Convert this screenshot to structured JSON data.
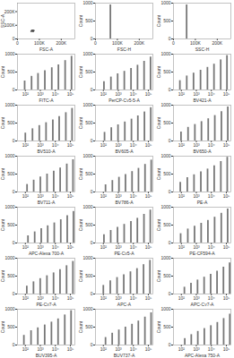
{
  "chart_data": [
    {
      "type": "scatter",
      "xlabel": "FSC-A",
      "ylabel": "SSC-A",
      "color": "#555555",
      "x": [
        62000,
        65000,
        68000,
        70000,
        72000,
        74000,
        66000,
        69000,
        71000,
        73000,
        67000,
        70500,
        64000,
        75000,
        69500,
        72500,
        68500,
        71500,
        66500,
        73500
      ],
      "y": [
        55000,
        60000,
        58000,
        62000,
        59000,
        61000,
        57000,
        63000,
        60500,
        58500,
        61500,
        56500,
        59500,
        62500,
        60000,
        57500,
        64000,
        55500,
        63500,
        59000
      ],
      "xlim": [
        0,
        262144
      ],
      "xticks": [
        {
          "value": 0,
          "label": "0"
        },
        {
          "value": 100000,
          "label": "100K"
        },
        {
          "value": 200000,
          "label": "200K"
        }
      ],
      "ylim": [
        0,
        262144
      ],
      "yticks": [
        {
          "value": 0,
          "label": "0"
        },
        {
          "value": 100000,
          "label": "100K"
        },
        {
          "value": 200000,
          "label": "200K"
        }
      ]
    },
    {
      "type": "spike",
      "xlabel": "FSC-H",
      "ylabel": "Count",
      "color": "#777777",
      "x": [
        68000
      ],
      "values": [
        950
      ],
      "xlim": [
        0,
        262144
      ],
      "xticks": [
        {
          "value": 0,
          "label": "0"
        },
        {
          "value": 100000,
          "label": "100K"
        },
        {
          "value": 200000,
          "label": "200K"
        }
      ],
      "ylim": [
        0,
        1000
      ],
      "yticks": [
        0,
        500,
        1000
      ]
    },
    {
      "type": "spike",
      "xlabel": "SSC-H",
      "ylabel": "Count",
      "color": "#777777",
      "x": [
        60000
      ],
      "values": [
        950
      ],
      "xlim": [
        0,
        262144
      ],
      "xticks": [
        {
          "value": 0,
          "label": "0"
        },
        {
          "value": 100000,
          "label": "100K"
        },
        {
          "value": 200000,
          "label": "200K"
        }
      ],
      "ylim": [
        0,
        1000
      ],
      "yticks": [
        0,
        500,
        1000
      ]
    },
    {
      "type": "spike",
      "log": "x",
      "xlabel": "FITC-A",
      "ylabel": "Count",
      "color": "#777777",
      "x": [
        90,
        260,
        700,
        2000,
        5800,
        16000,
        45000,
        120000
      ],
      "values": [
        250,
        380,
        460,
        540,
        620,
        700,
        820,
        940
      ],
      "xlim": [
        30,
        200000
      ],
      "xticks": [
        {
          "value": 100,
          "label": "10²"
        },
        {
          "value": 1000,
          "label": "10³"
        },
        {
          "value": 10000,
          "label": "10⁴"
        },
        {
          "value": 100000,
          "label": "10⁵"
        }
      ],
      "ylim": [
        0,
        1000
      ],
      "yticks": [
        0,
        500,
        1000
      ]
    },
    {
      "type": "spike",
      "log": "x",
      "xlabel": "PerCP-Cy5-5-A",
      "ylabel": "Count",
      "color": "#777777",
      "x": [
        110,
        320,
        900,
        2500,
        7000,
        19000,
        52000,
        140000
      ],
      "values": [
        230,
        360,
        450,
        520,
        600,
        690,
        800,
        920
      ],
      "xlim": [
        30,
        200000
      ],
      "xticks": [
        {
          "value": 100,
          "label": "10²"
        },
        {
          "value": 1000,
          "label": "10³"
        },
        {
          "value": 10000,
          "label": "10⁴"
        },
        {
          "value": 100000,
          "label": "10⁵"
        }
      ],
      "ylim": [
        0,
        1000
      ],
      "yticks": [
        0,
        500,
        1000
      ]
    },
    {
      "type": "spike",
      "log": "x",
      "xlabel": "BV421-A",
      "ylabel": "Count",
      "color": "#777777",
      "x": [
        80,
        230,
        650,
        1900,
        5500,
        15000,
        42000,
        110000
      ],
      "values": [
        260,
        390,
        470,
        550,
        630,
        720,
        840,
        960
      ],
      "xlim": [
        30,
        200000
      ],
      "xticks": [
        {
          "value": 100,
          "label": "10²"
        },
        {
          "value": 1000,
          "label": "10³"
        },
        {
          "value": 10000,
          "label": "10⁴"
        },
        {
          "value": 100000,
          "label": "10⁵"
        }
      ],
      "ylim": [
        0,
        1000
      ],
      "yticks": [
        0,
        500,
        1000
      ]
    },
    {
      "type": "spike",
      "log": "x",
      "xlabel": "BV510-A",
      "ylabel": "Count",
      "color": "#777777",
      "x": [
        100,
        300,
        850,
        2400,
        6800,
        18000,
        50000,
        130000
      ],
      "values": [
        220,
        340,
        430,
        510,
        590,
        680,
        790,
        910
      ],
      "xlim": [
        30,
        200000
      ],
      "xticks": [
        {
          "value": 100,
          "label": "10²"
        },
        {
          "value": 1000,
          "label": "10³"
        },
        {
          "value": 10000,
          "label": "10⁴"
        },
        {
          "value": 100000,
          "label": "10⁵"
        }
      ],
      "ylim": [
        0,
        1000
      ],
      "yticks": [
        0,
        500,
        1000
      ]
    },
    {
      "type": "spike",
      "log": "x",
      "xlabel": "BV605-A",
      "ylabel": "Count",
      "color": "#777777",
      "x": [
        120,
        340,
        950,
        2700,
        7500,
        20000,
        55000,
        145000
      ],
      "values": [
        240,
        370,
        450,
        530,
        610,
        700,
        810,
        930
      ],
      "xlim": [
        30,
        200000
      ],
      "xticks": [
        {
          "value": 100,
          "label": "10²"
        },
        {
          "value": 1000,
          "label": "10³"
        },
        {
          "value": 10000,
          "label": "10⁴"
        },
        {
          "value": 100000,
          "label": "10⁵"
        }
      ],
      "ylim": [
        0,
        1000
      ],
      "yticks": [
        0,
        500,
        1000
      ]
    },
    {
      "type": "spike",
      "log": "x",
      "xlabel": "BV650-A",
      "ylabel": "Count",
      "color": "#777777",
      "x": [
        95,
        280,
        800,
        2200,
        6200,
        17000,
        47000,
        125000
      ],
      "values": [
        250,
        380,
        460,
        540,
        620,
        710,
        820,
        950
      ],
      "xlim": [
        30,
        200000
      ],
      "xticks": [
        {
          "value": 100,
          "label": "10²"
        },
        {
          "value": 1000,
          "label": "10³"
        },
        {
          "value": 10000,
          "label": "10⁴"
        },
        {
          "value": 100000,
          "label": "10⁵"
        }
      ],
      "ylim": [
        0,
        1000
      ],
      "yticks": [
        0,
        500,
        1000
      ]
    },
    {
      "type": "spike",
      "log": "x",
      "xlabel": "BV711-A",
      "ylabel": "Count",
      "color": "#777777",
      "x": [
        130,
        360,
        1000,
        2800,
        7800,
        21000,
        58000,
        150000
      ],
      "values": [
        210,
        330,
        420,
        500,
        580,
        670,
        780,
        900
      ],
      "xlim": [
        30,
        200000
      ],
      "xticks": [
        {
          "value": 100,
          "label": "10²"
        },
        {
          "value": 1000,
          "label": "10³"
        },
        {
          "value": 10000,
          "label": "10⁴"
        },
        {
          "value": 100000,
          "label": "10⁵"
        }
      ],
      "ylim": [
        0,
        1000
      ],
      "yticks": [
        0,
        500,
        1000
      ]
    },
    {
      "type": "spike",
      "log": "x",
      "xlabel": "BV786-A",
      "ylabel": "Count",
      "color": "#777777",
      "x": [
        140,
        400,
        1100,
        3000,
        8200,
        22000,
        60000,
        155000
      ],
      "values": [
        200,
        320,
        410,
        490,
        570,
        660,
        770,
        890
      ],
      "xlim": [
        30,
        200000
      ],
      "xticks": [
        {
          "value": 100,
          "label": "10²"
        },
        {
          "value": 1000,
          "label": "10³"
        },
        {
          "value": 10000,
          "label": "10⁴"
        },
        {
          "value": 100000,
          "label": "10⁵"
        }
      ],
      "ylim": [
        0,
        1000
      ],
      "yticks": [
        0,
        500,
        1000
      ]
    },
    {
      "type": "spike",
      "log": "x",
      "xlabel": "PE-A",
      "ylabel": "Count",
      "color": "#777777",
      "x": [
        85,
        250,
        700,
        2000,
        5600,
        15500,
        43000,
        115000
      ],
      "values": [
        270,
        400,
        480,
        560,
        640,
        730,
        850,
        970
      ],
      "xlim": [
        30,
        200000
      ],
      "xticks": [
        {
          "value": 100,
          "label": "10²"
        },
        {
          "value": 1000,
          "label": "10³"
        },
        {
          "value": 10000,
          "label": "10⁴"
        },
        {
          "value": 100000,
          "label": "10⁵"
        }
      ],
      "ylim": [
        0,
        1000
      ],
      "yticks": [
        0,
        500,
        1000
      ]
    },
    {
      "type": "spike",
      "log": "x",
      "xlabel": "APC-Alexa 700-A",
      "ylabel": "Count",
      "color": "#777777",
      "x": [
        150,
        420,
        1150,
        3100,
        8500,
        23000,
        62000,
        160000
      ],
      "values": [
        200,
        310,
        400,
        480,
        560,
        650,
        760,
        880
      ],
      "xlim": [
        30,
        200000
      ],
      "xticks": [
        {
          "value": 100,
          "label": "10²"
        },
        {
          "value": 1000,
          "label": "10³"
        },
        {
          "value": 10000,
          "label": "10⁴"
        },
        {
          "value": 100000,
          "label": "10⁵"
        }
      ],
      "ylim": [
        0,
        1000
      ],
      "yticks": [
        0,
        500,
        1000
      ]
    },
    {
      "type": "spike",
      "log": "x",
      "xlabel": "PE-Cy5-A",
      "ylabel": "Count",
      "color": "#777777",
      "x": [
        110,
        310,
        880,
        2450,
        6900,
        18500,
        51000,
        135000
      ],
      "values": [
        230,
        350,
        440,
        520,
        600,
        690,
        800,
        920
      ],
      "xlim": [
        30,
        200000
      ],
      "xticks": [
        {
          "value": 100,
          "label": "10²"
        },
        {
          "value": 1000,
          "label": "10³"
        },
        {
          "value": 10000,
          "label": "10⁴"
        },
        {
          "value": 100000,
          "label": "10⁵"
        }
      ],
      "ylim": [
        0,
        1000
      ],
      "yticks": [
        0,
        500,
        1000
      ]
    },
    {
      "type": "spike",
      "log": "x",
      "xlabel": "PE-CF594-A",
      "ylabel": "Count",
      "color": "#777777",
      "x": [
        90,
        270,
        760,
        2100,
        5900,
        16500,
        46000,
        122000
      ],
      "values": [
        260,
        390,
        470,
        550,
        630,
        720,
        830,
        950
      ],
      "xlim": [
        30,
        200000
      ],
      "xticks": [
        {
          "value": 100,
          "label": "10²"
        },
        {
          "value": 1000,
          "label": "10³"
        },
        {
          "value": 10000,
          "label": "10⁴"
        },
        {
          "value": 100000,
          "label": "10⁵"
        }
      ],
      "ylim": [
        0,
        1000
      ],
      "yticks": [
        0,
        500,
        1000
      ]
    },
    {
      "type": "spike",
      "log": "x",
      "xlabel": "PE-Cy7-A",
      "ylabel": "Count",
      "color": "#777777",
      "x": [
        125,
        350,
        980,
        2750,
        7600,
        20500,
        56000,
        148000
      ],
      "values": [
        220,
        340,
        430,
        510,
        590,
        680,
        790,
        910
      ],
      "xlim": [
        30,
        200000
      ],
      "xticks": [
        {
          "value": 100,
          "label": "10²"
        },
        {
          "value": 1000,
          "label": "10³"
        },
        {
          "value": 10000,
          "label": "10⁴"
        },
        {
          "value": 100000,
          "label": "10⁵"
        }
      ],
      "ylim": [
        0,
        1000
      ],
      "yticks": [
        0,
        500,
        1000
      ]
    },
    {
      "type": "spike",
      "log": "x",
      "xlabel": "APC-A",
      "ylabel": "Count",
      "color": "#777777",
      "x": [
        100,
        290,
        820,
        2300,
        6400,
        17500,
        48000,
        128000
      ],
      "values": [
        240,
        370,
        460,
        540,
        620,
        710,
        820,
        940
      ],
      "xlim": [
        30,
        200000
      ],
      "xticks": [
        {
          "value": 100,
          "label": "10²"
        },
        {
          "value": 1000,
          "label": "10³"
        },
        {
          "value": 10000,
          "label": "10⁴"
        },
        {
          "value": 100000,
          "label": "10⁵"
        }
      ],
      "ylim": [
        0,
        1000
      ],
      "yticks": [
        0,
        500,
        1000
      ]
    },
    {
      "type": "spike",
      "log": "x",
      "xlabel": "APC-Cy7-A",
      "ylabel": "Count",
      "color": "#777777",
      "x": [
        160,
        440,
        1200,
        3300,
        9000,
        24000,
        64000,
        165000
      ],
      "values": [
        190,
        300,
        390,
        470,
        550,
        640,
        750,
        870
      ],
      "xlim": [
        30,
        200000
      ],
      "xticks": [
        {
          "value": 100,
          "label": "10²"
        },
        {
          "value": 1000,
          "label": "10³"
        },
        {
          "value": 10000,
          "label": "10⁴"
        },
        {
          "value": 100000,
          "label": "10⁵"
        }
      ],
      "ylim": [
        0,
        1000
      ],
      "yticks": [
        0,
        500,
        1000
      ]
    },
    {
      "type": "spike",
      "log": "x",
      "xlabel": "BUV395-A",
      "ylabel": "Count",
      "color": "#777777",
      "x": [
        80,
        240,
        680,
        1950,
        5500,
        15200,
        42500,
        112000
      ],
      "values": [
        270,
        400,
        480,
        560,
        640,
        730,
        840,
        960
      ],
      "xlim": [
        30,
        200000
      ],
      "xticks": [
        {
          "value": 100,
          "label": "10²"
        },
        {
          "value": 1000,
          "label": "10³"
        },
        {
          "value": 10000,
          "label": "10⁴"
        },
        {
          "value": 100000,
          "label": "10⁵"
        }
      ],
      "ylim": [
        0,
        1000
      ],
      "yticks": [
        0,
        500,
        1000
      ]
    },
    {
      "type": "spike",
      "log": "x",
      "xlabel": "BUV737-A",
      "ylabel": "Count",
      "color": "#777777",
      "x": [
        140,
        390,
        1080,
        2950,
        8100,
        21500,
        59000,
        152000
      ],
      "values": [
        210,
        330,
        420,
        500,
        580,
        670,
        780,
        900
      ],
      "xlim": [
        30,
        200000
      ],
      "xticks": [
        {
          "value": 100,
          "label": "10²"
        },
        {
          "value": 1000,
          "label": "10³"
        },
        {
          "value": 10000,
          "label": "10⁴"
        },
        {
          "value": 100000,
          "label": "10⁵"
        }
      ],
      "ylim": [
        0,
        1000
      ],
      "yticks": [
        0,
        500,
        1000
      ]
    },
    {
      "type": "spike",
      "log": "x",
      "xlabel": "APC-Alexa 750-A",
      "ylabel": "Count",
      "color": "#777777",
      "x": [
        170,
        460,
        1250,
        3400,
        9300,
        25000,
        66000,
        170000
      ],
      "values": [
        180,
        290,
        380,
        460,
        540,
        630,
        740,
        860
      ],
      "xlim": [
        30,
        200000
      ],
      "xticks": [
        {
          "value": 100,
          "label": "10²"
        },
        {
          "value": 1000,
          "label": "10³"
        },
        {
          "value": 10000,
          "label": "10⁴"
        },
        {
          "value": 100000,
          "label": "10⁵"
        }
      ],
      "ylim": [
        0,
        1000
      ],
      "yticks": [
        0,
        500,
        1000
      ]
    }
  ]
}
